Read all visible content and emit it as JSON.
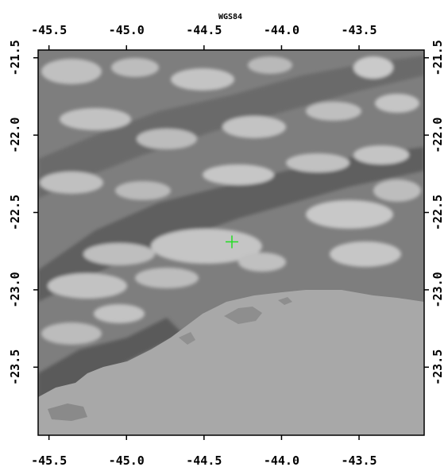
{
  "crs_label": "WGS84",
  "x_ticks": [
    "-45.5",
    "-45.0",
    "-44.5",
    "-44.0",
    "-43.5"
  ],
  "y_ticks": [
    "-21.5",
    "-22.0",
    "-22.5",
    "-23.0",
    "-23.5"
  ],
  "marker": {
    "lon": -44.32,
    "lat": -22.69,
    "color": "#22dd22"
  },
  "colors": {
    "ocean": "#a8a8a8",
    "frame": "#000000",
    "relief_dark": "#5e5e5e",
    "relief_mid": "#868686",
    "relief_light": "#c6c6c6"
  }
}
